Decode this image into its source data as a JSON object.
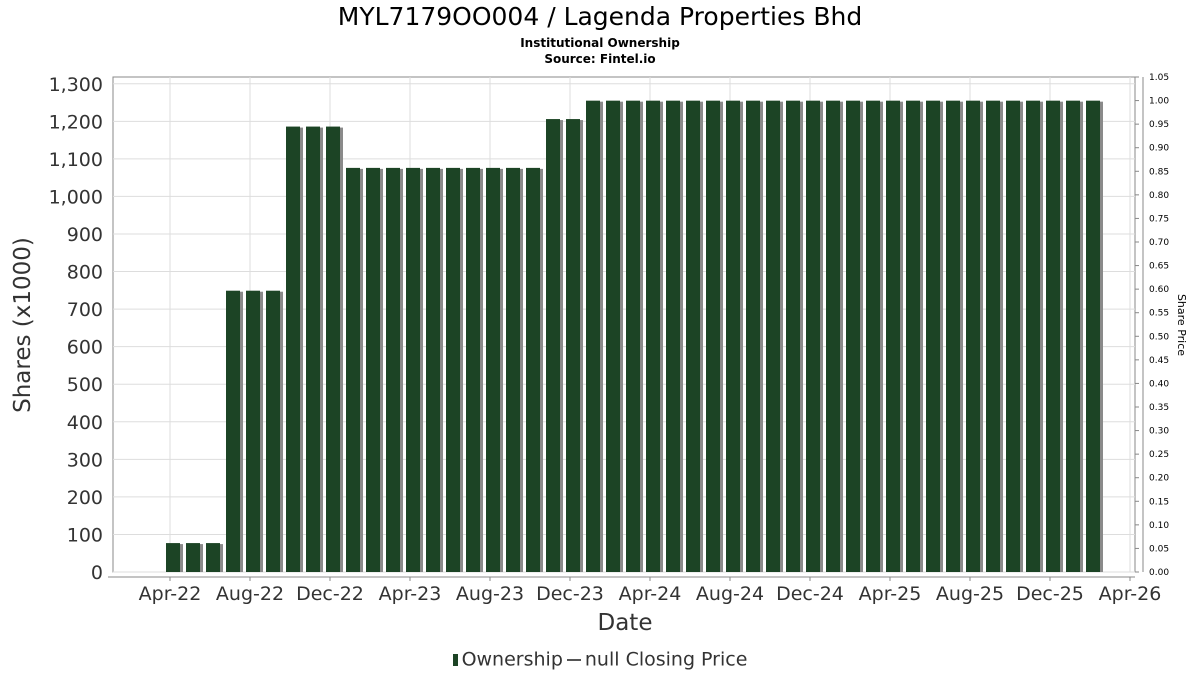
{
  "chart_data": {
    "type": "bar",
    "title": "MYL7179OO004 / Lagenda Properties Bhd",
    "subtitle": "Institutional Ownership",
    "source": "Source: Fintel.io",
    "xlabel": "Date",
    "ylabel": "Shares (x1000)",
    "y2label": "Share Price",
    "ylim": [
      0,
      1318
    ],
    "y2lim": [
      0,
      1.05
    ],
    "yticks": [
      "0",
      "100",
      "200",
      "300",
      "400",
      "500",
      "600",
      "700",
      "800",
      "900",
      "1,000",
      "1,100",
      "1,200",
      "1,300"
    ],
    "y2ticks": [
      "0.00",
      "0.05",
      "0.10",
      "0.15",
      "0.20",
      "0.25",
      "0.30",
      "0.35",
      "0.40",
      "0.45",
      "0.50",
      "0.55",
      "0.60",
      "0.65",
      "0.70",
      "0.75",
      "0.80",
      "0.85",
      "0.90",
      "0.95",
      "1.00",
      "1.05"
    ],
    "xticks": [
      "Apr-22",
      "Aug-22",
      "Dec-22",
      "Apr-23",
      "Aug-23",
      "Dec-23",
      "Apr-24",
      "Aug-24",
      "Dec-24",
      "Apr-25",
      "Aug-25",
      "Dec-25",
      "Apr-26"
    ],
    "start_month": "Apr-22",
    "series": [
      {
        "name": "Ownership",
        "color": "#1c4425",
        "values": [
          77,
          77,
          77,
          749,
          749,
          749,
          1186,
          1186,
          1186,
          1076,
          1076,
          1076,
          1076,
          1076,
          1076,
          1076,
          1076,
          1076,
          1076,
          1206,
          1206,
          1255,
          1255,
          1255,
          1255,
          1255,
          1255,
          1255,
          1255,
          1255,
          1255,
          1255,
          1255,
          1255,
          1255,
          1255,
          1255,
          1255,
          1255,
          1255,
          1255,
          1255,
          1255,
          1255,
          1255,
          1255,
          1255
        ]
      },
      {
        "name": "null Closing Price",
        "color": "#555555",
        "values": []
      }
    ],
    "legend": [
      "Ownership",
      "null Closing Price"
    ],
    "legend_position": "bottom",
    "grid": true
  }
}
